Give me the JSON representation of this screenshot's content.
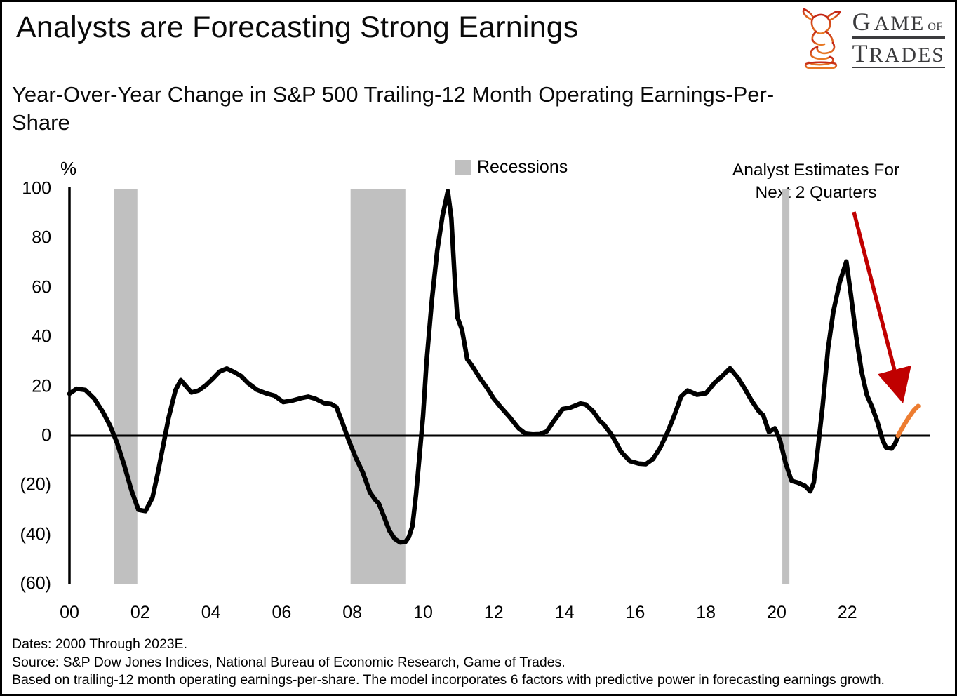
{
  "header": {
    "title": "Analysts are Forecasting Strong Earnings",
    "subtitle": "Year-Over-Year Change in S&P 500 Trailing-12 Month Operating Earnings-Per-\nShare"
  },
  "logo": {
    "word1": "Game",
    "word_of": "of",
    "word2": "Trades",
    "bull_color_top": "#c22214",
    "bull_color_bottom": "#e87a25",
    "text_color": "#3b3b3d"
  },
  "chart_data": {
    "type": "line",
    "title": "Year-Over-Year Change in S&P 500 Trailing-12 Month Operating Earnings-Per-Share",
    "unit_label": "%",
    "xlim": [
      2000,
      2024.2
    ],
    "ylim": [
      -60,
      100
    ],
    "grid": false,
    "y_ticks": [
      {
        "value": 100,
        "label": "100"
      },
      {
        "value": 80,
        "label": "80"
      },
      {
        "value": 60,
        "label": "60"
      },
      {
        "value": 40,
        "label": "40"
      },
      {
        "value": 20,
        "label": "20"
      },
      {
        "value": 0,
        "label": "0"
      },
      {
        "value": -20,
        "label": "(20)"
      },
      {
        "value": -40,
        "label": "(40)"
      },
      {
        "value": -60,
        "label": "(60)"
      }
    ],
    "x_ticks": [
      {
        "year": 2000,
        "label": "00"
      },
      {
        "year": 2002,
        "label": "02"
      },
      {
        "year": 2004,
        "label": "04"
      },
      {
        "year": 2006,
        "label": "06"
      },
      {
        "year": 2008,
        "label": "08"
      },
      {
        "year": 2010,
        "label": "10"
      },
      {
        "year": 2012,
        "label": "12"
      },
      {
        "year": 2014,
        "label": "14"
      },
      {
        "year": 2016,
        "label": "16"
      },
      {
        "year": 2018,
        "label": "18"
      },
      {
        "year": 2020,
        "label": "20"
      },
      {
        "year": 2022,
        "label": "22"
      }
    ],
    "recessions": {
      "label": "Recessions",
      "color": "#c0c0c0",
      "bands": [
        [
          2001.25,
          2001.92
        ],
        [
          2007.95,
          2009.5
        ],
        [
          2020.16,
          2020.36
        ]
      ]
    },
    "series": [
      {
        "name": "YoY change in S&P 500 trailing-12M operating EPS",
        "color": "#000000",
        "points": [
          [
            2000.0,
            17
          ],
          [
            2000.2,
            19
          ],
          [
            2000.45,
            18.5
          ],
          [
            2000.7,
            15
          ],
          [
            2000.95,
            9.5
          ],
          [
            2001.15,
            4
          ],
          [
            2001.35,
            -3
          ],
          [
            2001.55,
            -12
          ],
          [
            2001.75,
            -22
          ],
          [
            2001.95,
            -30
          ],
          [
            2002.15,
            -30.5
          ],
          [
            2002.35,
            -25
          ],
          [
            2002.5,
            -15
          ],
          [
            2002.65,
            -4
          ],
          [
            2002.8,
            7
          ],
          [
            2003.0,
            18.5
          ],
          [
            2003.15,
            22.5
          ],
          [
            2003.3,
            20
          ],
          [
            2003.45,
            17.5
          ],
          [
            2003.65,
            18.3
          ],
          [
            2003.85,
            20.3
          ],
          [
            2004.05,
            23
          ],
          [
            2004.25,
            26
          ],
          [
            2004.45,
            27.2
          ],
          [
            2004.65,
            25.8
          ],
          [
            2004.85,
            24.2
          ],
          [
            2005.05,
            21.3
          ],
          [
            2005.3,
            18.6
          ],
          [
            2005.55,
            17.2
          ],
          [
            2005.8,
            16.2
          ],
          [
            2006.05,
            13.6
          ],
          [
            2006.3,
            14.2
          ],
          [
            2006.55,
            15.2
          ],
          [
            2006.75,
            15.8
          ],
          [
            2006.95,
            15
          ],
          [
            2007.2,
            13.2
          ],
          [
            2007.4,
            12.8
          ],
          [
            2007.55,
            11.6
          ],
          [
            2007.7,
            6
          ],
          [
            2007.9,
            -2
          ],
          [
            2008.1,
            -9
          ],
          [
            2008.3,
            -15
          ],
          [
            2008.5,
            -23
          ],
          [
            2008.65,
            -26
          ],
          [
            2008.75,
            -27.5
          ],
          [
            2008.9,
            -33
          ],
          [
            2009.05,
            -38.5
          ],
          [
            2009.2,
            -41.8
          ],
          [
            2009.35,
            -43.2
          ],
          [
            2009.5,
            -43
          ],
          [
            2009.6,
            -41
          ],
          [
            2009.7,
            -36.5
          ],
          [
            2009.8,
            -24
          ],
          [
            2009.9,
            -8
          ],
          [
            2010.0,
            8
          ],
          [
            2010.1,
            30
          ],
          [
            2010.25,
            55
          ],
          [
            2010.4,
            75
          ],
          [
            2010.55,
            89
          ],
          [
            2010.7,
            99
          ],
          [
            2010.8,
            88
          ],
          [
            2010.9,
            62
          ],
          [
            2010.97,
            48
          ],
          [
            2011.1,
            43
          ],
          [
            2011.25,
            31
          ],
          [
            2011.4,
            28
          ],
          [
            2011.6,
            23.5
          ],
          [
            2011.8,
            19.5
          ],
          [
            2012.0,
            15
          ],
          [
            2012.2,
            11.5
          ],
          [
            2012.45,
            7.5
          ],
          [
            2012.7,
            3
          ],
          [
            2012.9,
            0.8
          ],
          [
            2013.1,
            0.5
          ],
          [
            2013.3,
            0.6
          ],
          [
            2013.5,
            1.8
          ],
          [
            2013.7,
            6
          ],
          [
            2013.95,
            10.8
          ],
          [
            2014.15,
            11.3
          ],
          [
            2014.45,
            13
          ],
          [
            2014.6,
            12.6
          ],
          [
            2014.8,
            10
          ],
          [
            2015.0,
            6
          ],
          [
            2015.1,
            4.8
          ],
          [
            2015.35,
            0
          ],
          [
            2015.6,
            -6.5
          ],
          [
            2015.85,
            -10.3
          ],
          [
            2016.1,
            -11.3
          ],
          [
            2016.3,
            -11.5
          ],
          [
            2016.5,
            -9.5
          ],
          [
            2016.7,
            -5
          ],
          [
            2016.9,
            1
          ],
          [
            2017.1,
            8
          ],
          [
            2017.3,
            15.9
          ],
          [
            2017.48,
            18.3
          ],
          [
            2017.75,
            16.6
          ],
          [
            2018.0,
            17.2
          ],
          [
            2018.25,
            21.5
          ],
          [
            2018.45,
            24
          ],
          [
            2018.68,
            27.3
          ],
          [
            2018.9,
            23.5
          ],
          [
            2019.1,
            19
          ],
          [
            2019.3,
            14
          ],
          [
            2019.5,
            9.8
          ],
          [
            2019.62,
            8.3
          ],
          [
            2019.78,
            1.5
          ],
          [
            2019.95,
            3
          ],
          [
            2020.1,
            -2
          ],
          [
            2020.25,
            -11
          ],
          [
            2020.42,
            -18.3
          ],
          [
            2020.6,
            -19
          ],
          [
            2020.8,
            -20.3
          ],
          [
            2020.95,
            -22.5
          ],
          [
            2021.05,
            -19
          ],
          [
            2021.15,
            -7
          ],
          [
            2021.3,
            12
          ],
          [
            2021.45,
            35
          ],
          [
            2021.6,
            50
          ],
          [
            2021.78,
            62
          ],
          [
            2021.97,
            70.5
          ],
          [
            2022.1,
            57
          ],
          [
            2022.25,
            40
          ],
          [
            2022.4,
            26
          ],
          [
            2022.55,
            16.5
          ],
          [
            2022.7,
            11.5
          ],
          [
            2022.85,
            5.5
          ],
          [
            2023.0,
            -2
          ],
          [
            2023.1,
            -4.9
          ],
          [
            2023.25,
            -5.2
          ],
          [
            2023.35,
            -3.2
          ],
          [
            2023.45,
            0.3
          ]
        ]
      },
      {
        "name": "Analyst Estimates For Next 2 Quarters",
        "color": "#ed7d31",
        "points": [
          [
            2023.43,
            0
          ],
          [
            2023.58,
            3.8
          ],
          [
            2023.73,
            7.3
          ],
          [
            2023.88,
            10.3
          ],
          [
            2024.0,
            12
          ]
        ]
      }
    ],
    "annotation": {
      "line1": "Analyst Estimates For",
      "line2": "Next 2 Quarters",
      "arrow_color": "#c00000"
    }
  },
  "footer": {
    "line1": "Dates: 2000 Through 2023E.",
    "line2": "Source: S&P Dow Jones Indices, National Bureau of Economic Research, Game of Trades.",
    "line3": "Based on trailing-12 month operating earnings-per-share. The model incorporates 6 factors with predictive power in forecasting earnings growth."
  }
}
